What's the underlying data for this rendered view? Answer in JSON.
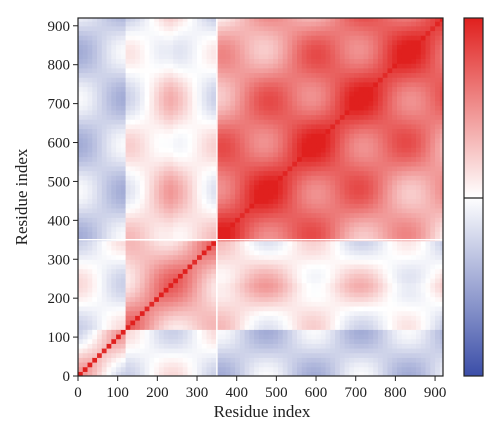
{
  "chart_data": {
    "type": "heatmap",
    "title": "",
    "xlabel": "Residue index",
    "ylabel": "Residue index",
    "xlim": [
      0,
      920
    ],
    "ylim": [
      0,
      920
    ],
    "x_ticks": [
      0,
      100,
      200,
      300,
      400,
      500,
      600,
      700,
      800,
      900
    ],
    "y_ticks": [
      0,
      100,
      200,
      300,
      400,
      500,
      600,
      700,
      800,
      900
    ],
    "domain_boundaries": [
      120,
      350
    ],
    "colorbar": {
      "colors": [
        "#3b4ea8",
        "#ffffff",
        "#e0201e"
      ],
      "tick_labels": []
    },
    "grid": false,
    "legend": "colorbar-right"
  }
}
